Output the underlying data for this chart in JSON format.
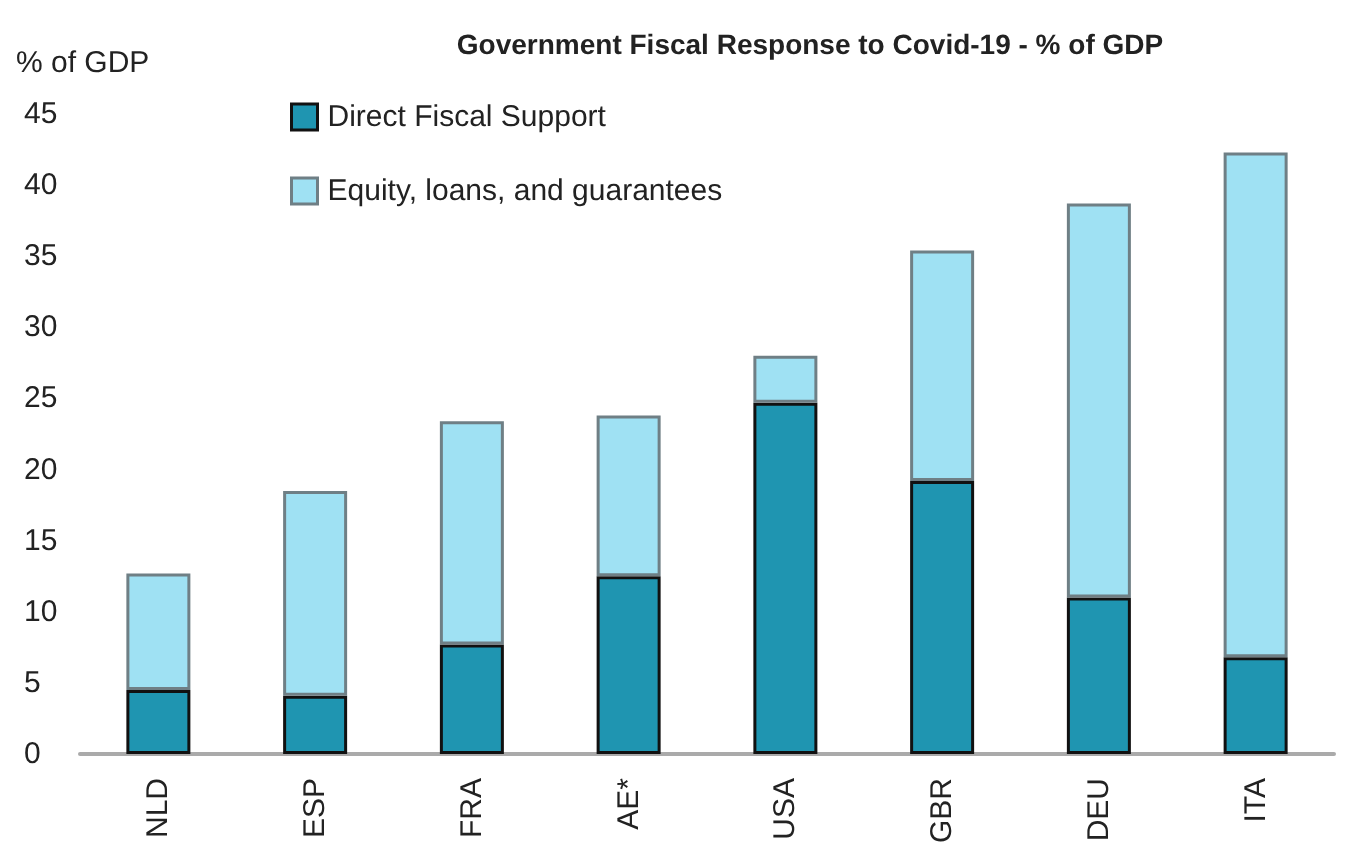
{
  "chart_data": {
    "type": "bar",
    "title": "Government Fiscal Response to Covid-19 - % of GDP",
    "ylabel": "% of GDP",
    "categories": [
      "NLD",
      "ESP",
      "FRA",
      "AE*",
      "USA",
      "GBR",
      "DEU",
      "ITA"
    ],
    "stacked": true,
    "series": [
      {
        "name": "Direct Fiscal Support",
        "color": "#1f95b1",
        "values": [
          4.5,
          4.1,
          7.7,
          12.5,
          24.7,
          19.2,
          11.0,
          6.8
        ]
      },
      {
        "name": "Equity, loans, and guarantees",
        "color": "#9fe1f3",
        "values": [
          8.2,
          14.4,
          15.7,
          11.3,
          3.3,
          16.2,
          27.7,
          35.5
        ]
      }
    ],
    "ylim": [
      0,
      45
    ],
    "yticks": [
      0,
      5,
      10,
      15,
      20,
      25,
      30,
      35,
      40,
      45
    ],
    "grid": false,
    "legend": "top left"
  }
}
